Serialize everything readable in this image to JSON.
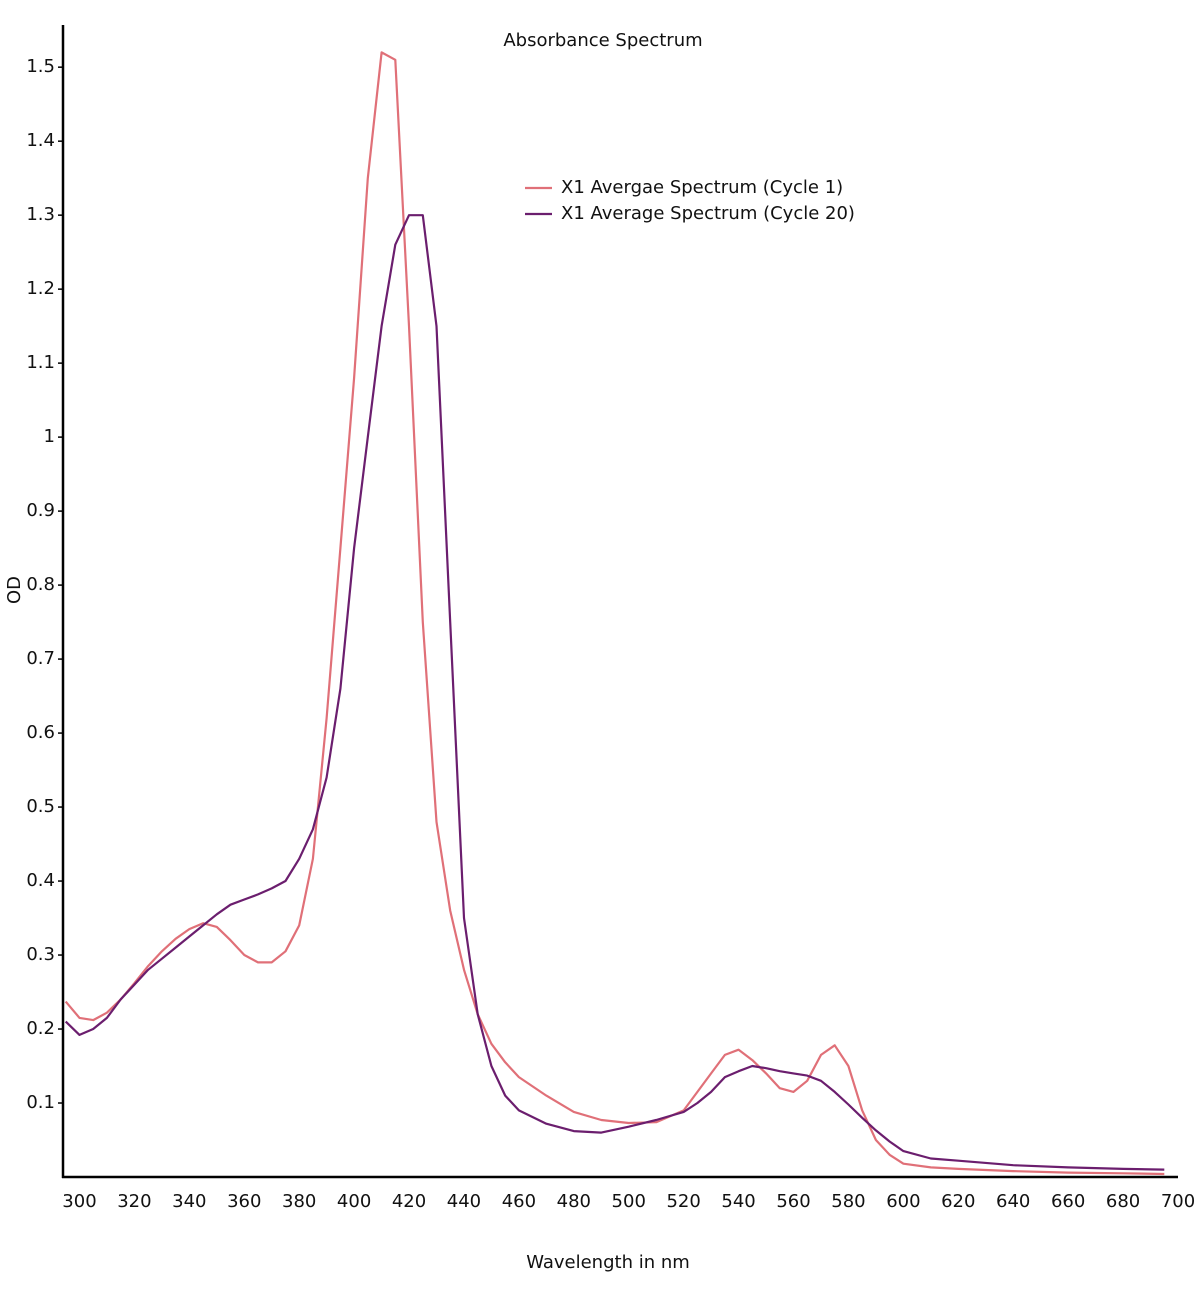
{
  "chart_data": {
    "type": "line",
    "title": "Absorbance Spectrum",
    "x_label": "Wavelength in nm",
    "y_label": "OD",
    "x": [
      295,
      300,
      305,
      310,
      315,
      320,
      325,
      330,
      335,
      340,
      345,
      350,
      355,
      360,
      365,
      370,
      375,
      380,
      385,
      390,
      395,
      400,
      405,
      410,
      415,
      420,
      425,
      430,
      435,
      440,
      445,
      450,
      455,
      460,
      470,
      480,
      490,
      500,
      510,
      520,
      525,
      530,
      535,
      540,
      545,
      550,
      555,
      560,
      565,
      570,
      575,
      580,
      585,
      590,
      595,
      600,
      610,
      620,
      640,
      660,
      680,
      695
    ],
    "series": [
      {
        "name": "X1 Avergae Spectrum (Cycle 1)",
        "color": "#e07078",
        "values": [
          0.237,
          0.215,
          0.212,
          0.222,
          0.24,
          0.262,
          0.285,
          0.305,
          0.322,
          0.335,
          0.343,
          0.338,
          0.32,
          0.3,
          0.29,
          0.29,
          0.305,
          0.34,
          0.43,
          0.62,
          0.85,
          1.08,
          1.35,
          1.52,
          1.51,
          1.15,
          0.75,
          0.48,
          0.36,
          0.28,
          0.22,
          0.18,
          0.155,
          0.135,
          0.11,
          0.088,
          0.077,
          0.073,
          0.074,
          0.09,
          0.115,
          0.14,
          0.165,
          0.172,
          0.158,
          0.14,
          0.12,
          0.115,
          0.13,
          0.165,
          0.178,
          0.15,
          0.09,
          0.05,
          0.03,
          0.018,
          0.013,
          0.011,
          0.008,
          0.006,
          0.005,
          0.004
        ]
      },
      {
        "name": "X1 Average Spectrum (Cycle 20)",
        "color": "#6b1e6e",
        "values": [
          0.21,
          0.192,
          0.2,
          0.215,
          0.24,
          0.26,
          0.28,
          0.295,
          0.31,
          0.325,
          0.34,
          0.355,
          0.368,
          0.375,
          0.382,
          0.39,
          0.4,
          0.43,
          0.47,
          0.54,
          0.66,
          0.85,
          1.0,
          1.15,
          1.26,
          1.3,
          1.3,
          1.15,
          0.75,
          0.35,
          0.22,
          0.15,
          0.11,
          0.09,
          0.072,
          0.062,
          0.06,
          0.068,
          0.077,
          0.088,
          0.1,
          0.115,
          0.135,
          0.143,
          0.15,
          0.147,
          0.143,
          0.14,
          0.137,
          0.13,
          0.115,
          0.098,
          0.08,
          0.063,
          0.048,
          0.035,
          0.025,
          0.022,
          0.016,
          0.013,
          0.011,
          0.01
        ]
      }
    ],
    "xlim": [
      294,
      700
    ],
    "ylim": [
      0,
      1.557
    ],
    "xticks": [
      300,
      320,
      340,
      360,
      380,
      400,
      420,
      440,
      460,
      480,
      500,
      520,
      540,
      560,
      580,
      600,
      620,
      640,
      660,
      680,
      700
    ],
    "yticks": [
      0.1,
      0.2,
      0.3,
      0.4,
      0.5,
      0.6,
      0.7,
      0.8,
      0.9,
      1,
      1.1,
      1.2,
      1.3,
      1.4,
      1.5
    ],
    "grid": false,
    "legend": "top"
  }
}
